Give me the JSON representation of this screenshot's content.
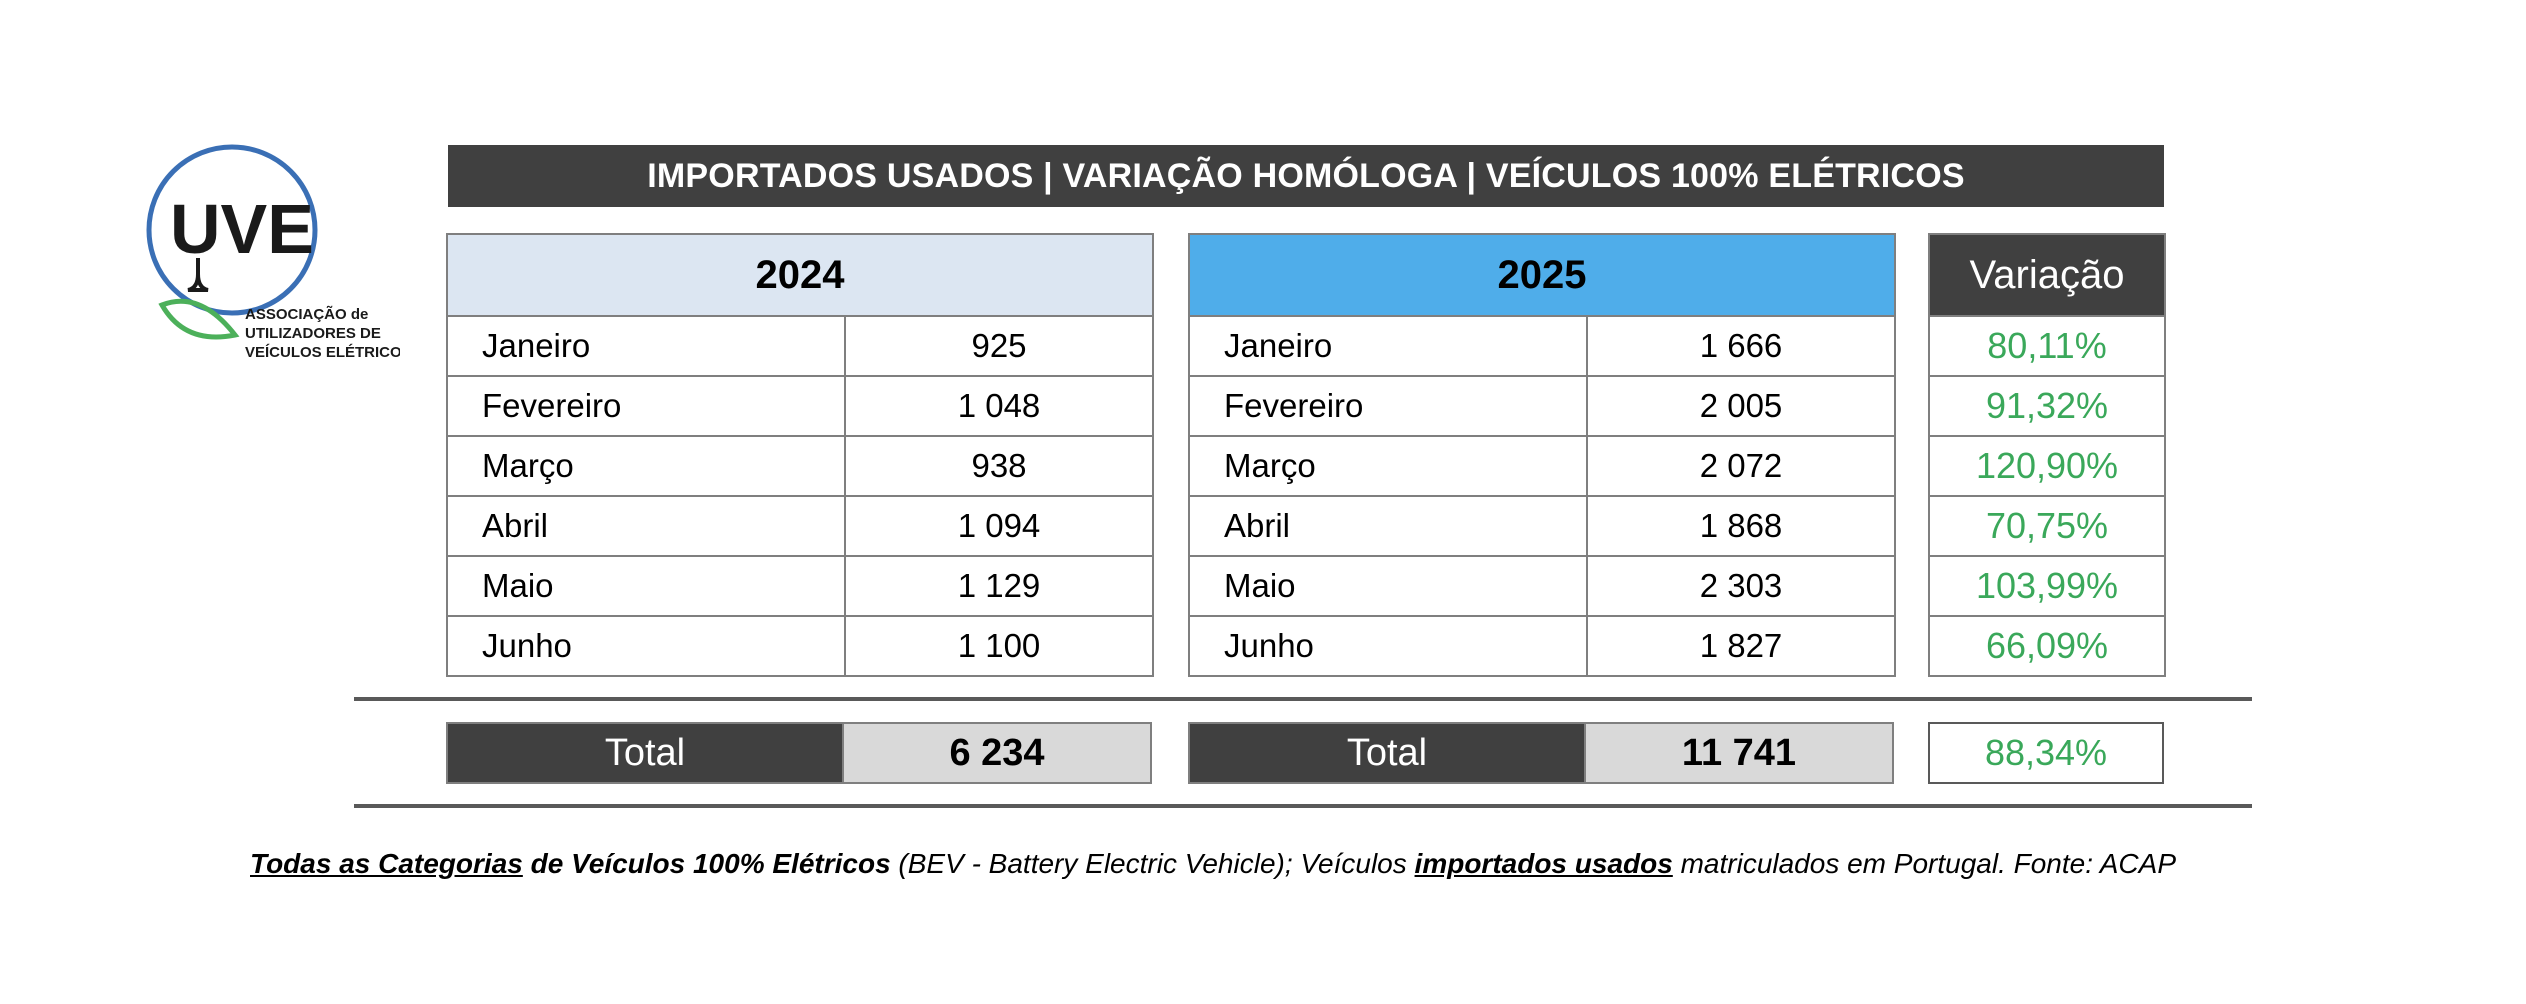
{
  "logo": {
    "acronym": "UVE",
    "line1": "ASSOCIAÇÃO de",
    "line2": "UTILIZADORES DE",
    "line3": "VEÍCULOS ELÉTRICOS",
    "colors": {
      "ring": "#3a6fb5",
      "leaf": "#4cb05a",
      "text": "#1a1a1a"
    }
  },
  "title": "IMPORTADOS USADOS | VARIAÇÃO HOMÓLOGA | VEÍCULOS 100% ELÉTRICOS",
  "chart_data": {
    "type": "table",
    "title": "IMPORTADOS USADOS | VARIAÇÃO HOMÓLOGA | VEÍCULOS 100% ELÉTRICOS",
    "columns": [
      "2024",
      "2025",
      "Variação"
    ],
    "months": [
      "Janeiro",
      "Fevereiro",
      "Março",
      "Abril",
      "Maio",
      "Junho"
    ],
    "series": [
      {
        "name": "2024",
        "values": [
          "925",
          "1 048",
          "938",
          "1 094",
          "1 129",
          "1 100"
        ],
        "total": "6 234"
      },
      {
        "name": "2025",
        "values": [
          "1 666",
          "2 005",
          "2 072",
          "1 868",
          "2 303",
          "1 827"
        ],
        "total": "11 741"
      }
    ],
    "variation": {
      "name": "Variação",
      "values": [
        "80,11%",
        "91,32%",
        "120,90%",
        "70,75%",
        "103,99%",
        "66,09%"
      ],
      "total": "88,34%"
    },
    "total_label": "Total"
  },
  "colors": {
    "header_dark": "#404040",
    "header_2024": "#dce6f2",
    "header_2025": "#4fadea",
    "variation_green": "#3aa85a",
    "total_value_bg": "#d9d9d9"
  },
  "footnote": {
    "part1": "Todas as Categorias",
    "part2": " de Veículos 100% Elétricos",
    "part3": " (BEV - Battery Electric Vehicle); Veículos ",
    "part4": "importados usados",
    "part5": " matriculados em Portugal. Fonte: ACAP"
  }
}
